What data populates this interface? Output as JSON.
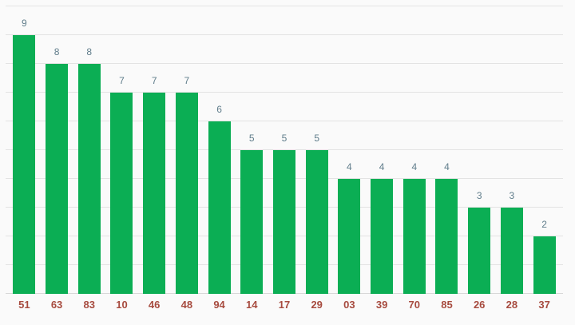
{
  "chart_data": {
    "type": "bar",
    "title": "",
    "xlabel": "",
    "ylabel": "",
    "categories": [
      "51",
      "63",
      "83",
      "10",
      "46",
      "48",
      "94",
      "14",
      "17",
      "29",
      "03",
      "39",
      "70",
      "85",
      "26",
      "28",
      "37"
    ],
    "values": [
      9,
      8,
      8,
      7,
      7,
      7,
      6,
      5,
      5,
      5,
      4,
      4,
      4,
      4,
      3,
      3,
      2
    ],
    "ylim": [
      0,
      10
    ],
    "grid": true,
    "grid_step": 1,
    "y_tick_labels_visible": false,
    "legend_position": "none",
    "value_labels_visible": true,
    "colors": {
      "background": "#fafafa",
      "bar": "#0bae54",
      "gridline": "#e3e3e3",
      "baseline": "#d8d8d8",
      "value_label": "#607d8b",
      "x_axis_label": "#a74b3f"
    }
  }
}
